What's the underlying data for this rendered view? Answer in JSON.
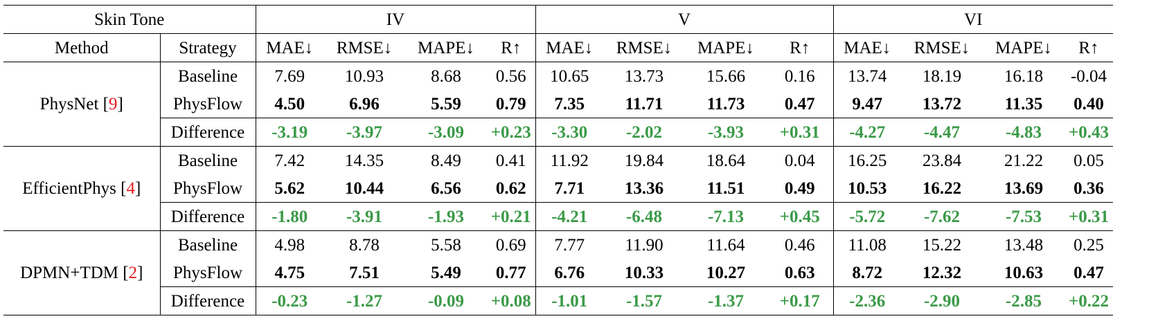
{
  "header": {
    "skin_tone_label": "Skin Tone",
    "groups": [
      "IV",
      "V",
      "VI"
    ],
    "method_label": "Method",
    "strategy_label": "Strategy",
    "metrics": [
      "MAE↓",
      "RMSE↓",
      "MAPE↓",
      "R↑"
    ]
  },
  "methods": [
    {
      "name": "PhysNet [",
      "ref": "9",
      "close": "]",
      "rows": [
        {
          "strategy": "Baseline",
          "values": [
            "7.69",
            "10.93",
            "8.68",
            "0.56",
            "10.65",
            "13.73",
            "15.66",
            "0.16",
            "13.74",
            "18.19",
            "16.18",
            "-0.04"
          ]
        },
        {
          "strategy": "PhysFlow",
          "values": [
            "4.50",
            "6.96",
            "5.59",
            "0.79",
            "7.35",
            "11.71",
            "11.73",
            "0.47",
            "9.47",
            "13.72",
            "11.35",
            "0.40"
          ]
        },
        {
          "strategy": "Difference",
          "values": [
            "-3.19",
            "-3.97",
            "-3.09",
            "+0.23",
            "-3.30",
            "-2.02",
            "-3.93",
            "+0.31",
            "-4.27",
            "-4.47",
            "-4.83",
            "+0.43"
          ]
        }
      ]
    },
    {
      "name": "EfficientPhys [",
      "ref": "4",
      "close": "]",
      "rows": [
        {
          "strategy": "Baseline",
          "values": [
            "7.42",
            "14.35",
            "8.49",
            "0.41",
            "11.92",
            "19.84",
            "18.64",
            "0.04",
            "16.25",
            "23.84",
            "21.22",
            "0.05"
          ]
        },
        {
          "strategy": "PhysFlow",
          "values": [
            "5.62",
            "10.44",
            "6.56",
            "0.62",
            "7.71",
            "13.36",
            "11.51",
            "0.49",
            "10.53",
            "16.22",
            "13.69",
            "0.36"
          ]
        },
        {
          "strategy": "Difference",
          "values": [
            "-1.80",
            "-3.91",
            "-1.93",
            "+0.21",
            "-4.21",
            "-6.48",
            "-7.13",
            "+0.45",
            "-5.72",
            "-7.62",
            "-7.53",
            "+0.31"
          ]
        }
      ]
    },
    {
      "name": "DPMN+TDM [",
      "ref": "2",
      "close": "]",
      "rows": [
        {
          "strategy": "Baseline",
          "values": [
            "4.98",
            "8.78",
            "5.58",
            "0.69",
            "7.77",
            "11.90",
            "11.64",
            "0.46",
            "11.08",
            "15.22",
            "13.48",
            "0.25"
          ]
        },
        {
          "strategy": "PhysFlow",
          "values": [
            "4.75",
            "7.51",
            "5.49",
            "0.77",
            "6.76",
            "10.33",
            "10.27",
            "0.63",
            "8.72",
            "12.32",
            "10.63",
            "0.47"
          ]
        },
        {
          "strategy": "Difference",
          "values": [
            "-0.23",
            "-1.27",
            "-0.09",
            "+0.08",
            "-1.01",
            "-1.57",
            "-1.37",
            "+0.17",
            "-2.36",
            "-2.90",
            "-2.85",
            "+0.22"
          ]
        }
      ]
    }
  ],
  "colors": {
    "difference": "#3b9a48",
    "reference": "#e41a1c"
  }
}
